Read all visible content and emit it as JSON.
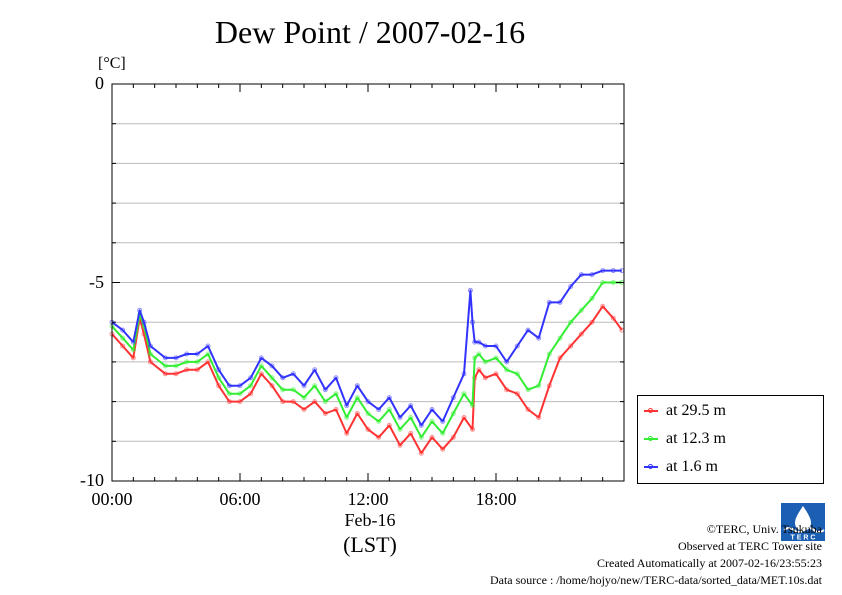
{
  "title": "Dew Point / 2007-02-16",
  "unit_label": "[°C]",
  "chart_data": {
    "type": "line",
    "title": "Dew Point / 2007-02-16",
    "ylabel": "[°C]",
    "xlabel": "(LST)",
    "date_label": "Feb-16",
    "tz_label": "(LST)",
    "ylim": [
      -10,
      0
    ],
    "xlim_hours": [
      0,
      24
    ],
    "y_ticks": [
      {
        "label": "0",
        "value": 0
      },
      {
        "label": "-5",
        "value": -5
      },
      {
        "label": "-10",
        "value": -10
      }
    ],
    "x_ticks": [
      {
        "label": "00:00",
        "value": 0
      },
      {
        "label": "06:00",
        "value": 6
      },
      {
        "label": "12:00",
        "value": 12
      },
      {
        "label": "18:00",
        "value": 18
      }
    ],
    "grid": "horizontal, every 1 °C",
    "legend_position": "lower-right, outside plot",
    "series": [
      {
        "name": "at 29.5 m",
        "color": "#ff3333",
        "x": [
          0,
          0.5,
          1.0,
          1.3,
          1.5,
          1.8,
          2.5,
          3.0,
          3.5,
          4.0,
          4.5,
          5.0,
          5.5,
          6.0,
          6.5,
          7.0,
          7.5,
          8.0,
          8.5,
          9.0,
          9.5,
          10.0,
          10.5,
          11.0,
          11.5,
          12.0,
          12.5,
          13.0,
          13.5,
          14.0,
          14.5,
          15.0,
          15.5,
          16.0,
          16.5,
          16.9,
          17.0,
          17.2,
          17.5,
          18.0,
          18.5,
          19.0,
          19.5,
          20.0,
          20.5,
          21.0,
          21.5,
          22.0,
          22.5,
          23.0,
          23.5,
          23.9
        ],
        "values": [
          -6.3,
          -6.6,
          -6.9,
          -5.9,
          -6.3,
          -7.0,
          -7.3,
          -7.3,
          -7.2,
          -7.2,
          -7.0,
          -7.6,
          -8.0,
          -8.0,
          -7.8,
          -7.3,
          -7.6,
          -8.0,
          -8.0,
          -8.2,
          -8.0,
          -8.3,
          -8.2,
          -8.8,
          -8.3,
          -8.7,
          -8.9,
          -8.6,
          -9.1,
          -8.8,
          -9.3,
          -8.9,
          -9.2,
          -8.9,
          -8.4,
          -8.7,
          -7.4,
          -7.2,
          -7.4,
          -7.3,
          -7.7,
          -7.8,
          -8.2,
          -8.4,
          -7.6,
          -6.9,
          -6.6,
          -6.3,
          -6.0,
          -5.6,
          -5.9,
          -6.2
        ]
      },
      {
        "name": "at 12.3 m",
        "color": "#33ee33",
        "x": [
          0,
          0.5,
          1.0,
          1.3,
          1.5,
          1.8,
          2.5,
          3.0,
          3.5,
          4.0,
          4.5,
          5.0,
          5.5,
          6.0,
          6.5,
          7.0,
          7.5,
          8.0,
          8.5,
          9.0,
          9.5,
          10.0,
          10.5,
          11.0,
          11.5,
          12.0,
          12.5,
          13.0,
          13.5,
          14.0,
          14.5,
          15.0,
          15.5,
          16.0,
          16.5,
          16.9,
          17.0,
          17.2,
          17.5,
          18.0,
          18.5,
          19.0,
          19.5,
          20.0,
          20.5,
          21.0,
          21.5,
          22.0,
          22.5,
          23.0,
          23.5,
          23.9
        ],
        "values": [
          -6.1,
          -6.4,
          -6.7,
          -5.8,
          -6.1,
          -6.8,
          -7.1,
          -7.1,
          -7.0,
          -7.0,
          -6.8,
          -7.4,
          -7.8,
          -7.8,
          -7.6,
          -7.1,
          -7.4,
          -7.7,
          -7.7,
          -7.9,
          -7.6,
          -8.0,
          -7.8,
          -8.4,
          -7.9,
          -8.3,
          -8.5,
          -8.2,
          -8.7,
          -8.4,
          -8.9,
          -8.5,
          -8.8,
          -8.3,
          -7.8,
          -8.1,
          -6.9,
          -6.8,
          -7.0,
          -6.9,
          -7.2,
          -7.3,
          -7.7,
          -7.6,
          -6.8,
          -6.4,
          -6.0,
          -5.7,
          -5.4,
          -5.0,
          -5.0,
          -5.0
        ]
      },
      {
        "name": "at 1.6 m",
        "color": "#3333ff",
        "x": [
          0,
          0.5,
          1.0,
          1.3,
          1.5,
          1.8,
          2.5,
          3.0,
          3.5,
          4.0,
          4.5,
          5.0,
          5.5,
          6.0,
          6.5,
          7.0,
          7.5,
          8.0,
          8.5,
          9.0,
          9.5,
          10.0,
          10.5,
          11.0,
          11.5,
          12.0,
          12.5,
          13.0,
          13.5,
          14.0,
          14.5,
          15.0,
          15.5,
          16.0,
          16.5,
          16.8,
          16.9,
          17.0,
          17.2,
          17.5,
          18.0,
          18.5,
          19.0,
          19.5,
          20.0,
          20.5,
          21.0,
          21.5,
          22.0,
          22.5,
          23.0,
          23.5,
          23.9
        ],
        "values": [
          -6.0,
          -6.2,
          -6.5,
          -5.7,
          -6.0,
          -6.6,
          -6.9,
          -6.9,
          -6.8,
          -6.8,
          -6.6,
          -7.2,
          -7.6,
          -7.6,
          -7.4,
          -6.9,
          -7.1,
          -7.4,
          -7.3,
          -7.6,
          -7.2,
          -7.7,
          -7.4,
          -8.1,
          -7.6,
          -8.0,
          -8.2,
          -7.9,
          -8.4,
          -8.1,
          -8.6,
          -8.2,
          -8.5,
          -7.9,
          -7.3,
          -5.2,
          -6.0,
          -6.5,
          -6.5,
          -6.6,
          -6.6,
          -7.0,
          -6.6,
          -6.2,
          -6.4,
          -5.5,
          -5.5,
          -5.1,
          -4.8,
          -4.8,
          -4.7,
          -4.7,
          -4.7
        ]
      }
    ]
  },
  "footer": {
    "copyright": "©TERC, Univ. Tsukuba",
    "site": "Observed at TERC Tower site",
    "created": "Created Automatically at 2007-02-16/23:55:23",
    "source": "Data source : /home/hojyo/new/TERC-data/sorted_data/MET.10s.dat"
  }
}
